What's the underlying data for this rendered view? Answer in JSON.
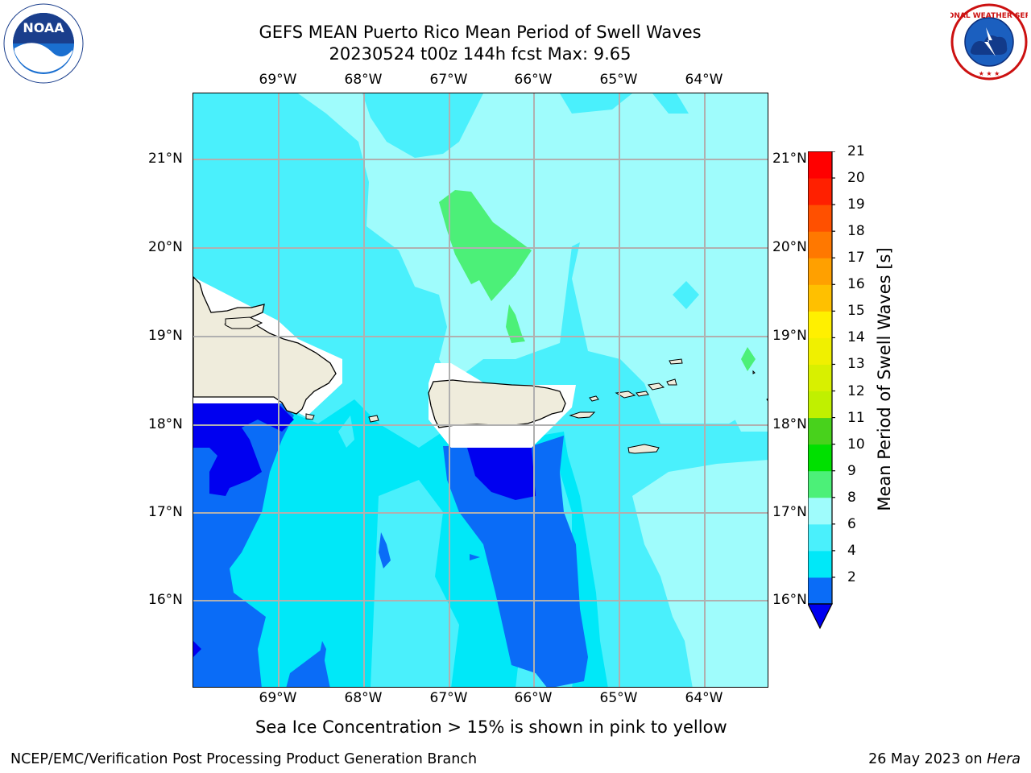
{
  "title": {
    "line1": "GEFS MEAN Puerto Rico Mean Period of Swell Waves",
    "line2": "20230524 t00z 144h fcst   Max: 9.65"
  },
  "logos": {
    "left": {
      "name": "noaa-logo",
      "text": "NOAA"
    },
    "right": {
      "name": "nws-logo",
      "text": "NATIONAL WEATHER SERVICE"
    }
  },
  "map": {
    "lon_labels": [
      "69°W",
      "68°W",
      "67°W",
      "66°W",
      "65°W",
      "64°W"
    ],
    "lat_labels": [
      "21°N",
      "20°N",
      "19°N",
      "18°N",
      "17°N",
      "16°N"
    ],
    "extent": {
      "lon": [
        -70.0,
        -63.25
      ],
      "lat": [
        15.03,
        21.75
      ]
    },
    "land_color": "#efecdc",
    "grid_color": "#b0b0b0"
  },
  "colorbar": {
    "label": "Mean Period of Swell Waves [s]",
    "ticks": [
      "21",
      "20",
      "19",
      "18",
      "17",
      "16",
      "15",
      "14",
      "13",
      "12",
      "11",
      "10",
      "9",
      "8",
      "6",
      "4",
      "2"
    ],
    "levels": [
      {
        "from": 2,
        "to": 4,
        "color": "#0a6cf7"
      },
      {
        "from": 4,
        "to": 6,
        "color": "#00e8f8"
      },
      {
        "from": 6,
        "to": 8,
        "color": "#4af0fc"
      },
      {
        "from": 8,
        "to": 9,
        "color": "#9ffcfc"
      },
      {
        "from": 9,
        "to": 10,
        "color": "#4cf078"
      },
      {
        "from": 10,
        "to": 11,
        "color": "#00e000"
      },
      {
        "from": 11,
        "to": 12,
        "color": "#48d21c"
      },
      {
        "from": 12,
        "to": 13,
        "color": "#c0f000"
      },
      {
        "from": 13,
        "to": 14,
        "color": "#d8f000"
      },
      {
        "from": 14,
        "to": 15,
        "color": "#f0f000"
      },
      {
        "from": 15,
        "to": 16,
        "color": "#fff000"
      },
      {
        "from": 16,
        "to": 17,
        "color": "#ffc000"
      },
      {
        "from": 17,
        "to": 18,
        "color": "#ffa000"
      },
      {
        "from": 18,
        "to": 19,
        "color": "#ff7800"
      },
      {
        "from": 19,
        "to": 20,
        "color": "#ff5000"
      },
      {
        "from": 20,
        "to": 21,
        "color": "#ff2000"
      },
      {
        "from": 21,
        "to": 22,
        "color": "#ff0000"
      }
    ],
    "under_color": "#0000f0"
  },
  "sea_ice_note": "Sea Ice Concentration > 15% is shown in pink to yellow",
  "footer": {
    "left": "NCEP/EMC/Verification Post Processing Product Generation Branch",
    "right_prefix": "26 May 2023 on ",
    "right_machine": "Hera"
  }
}
